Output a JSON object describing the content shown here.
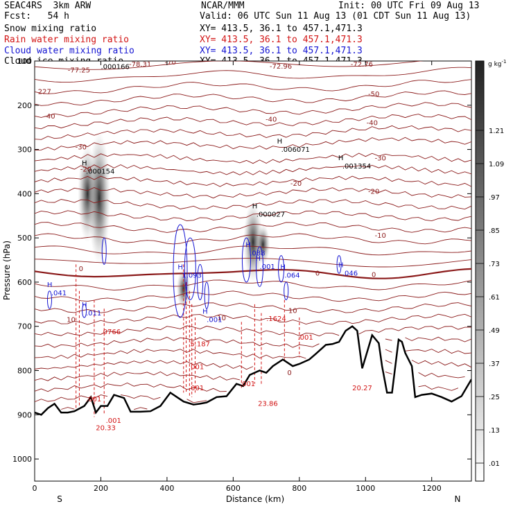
{
  "header": {
    "line1_left": "SEAC4RS  3km ARW",
    "line1_center": "NCAR/MMM",
    "line1_right": "Init: 00 UTC Fri 09 Aug 13",
    "line2_left": "Fcst:   54 h",
    "line2_right": "Valid: 06 UTC Sun 11 Aug 13 (01 CDT Sun 11 Aug 13)",
    "fields": [
      {
        "label": "Snow mixing ratio",
        "xy": "XY= 413.5, 36.1 to 457.1,471.3",
        "color": "#000000"
      },
      {
        "label": "Rain water mixing ratio",
        "xy": "XY= 413.5, 36.1 to 457.1,471.3",
        "color": "#d21414"
      },
      {
        "label": "Cloud water mixing ratio",
        "xy": "XY= 413.5, 36.1 to 457.1,471.3",
        "color": "#1414d2"
      },
      {
        "label": "Cloud ice mixing ratio",
        "xy": "XY= 413.5, 36.1 to 457.1,471.3",
        "color": "#000000"
      }
    ]
  },
  "chart_data": {
    "type": "cross-section",
    "xlabel": "Distance (km)",
    "ylabel": "Pressure (hPa)",
    "xlim": [
      0,
      1320
    ],
    "ylim": [
      1050,
      100
    ],
    "x_ticks": [
      0,
      200,
      400,
      600,
      800,
      1000,
      1200
    ],
    "y_ticks": [
      100,
      200,
      300,
      400,
      500,
      600,
      700,
      800,
      900,
      1000
    ],
    "y_tick_labels": [
      "100",
      "200",
      "300",
      "400",
      "500",
      "600",
      "700",
      "800",
      "900",
      "1000"
    ],
    "x_end_labels": {
      "left": "S",
      "right": "N"
    },
    "colorbar": {
      "unit": "g kg",
      "unit_exp": "-1",
      "labels": [
        ".01",
        ".13",
        ".25",
        ".37",
        ".49",
        ".61",
        ".73",
        ".85",
        ".97",
        "1.09",
        "1.21"
      ]
    },
    "temperature_contours": [
      {
        "label": "-70",
        "x": 410,
        "p": 108
      },
      {
        "label": "-50",
        "x": 1025,
        "p": 180
      },
      {
        "label": "-40",
        "x": 45,
        "p": 230
      },
      {
        "label": "-40",
        "x": 1020,
        "p": 245
      },
      {
        "label": "-40",
        "x": 715,
        "p": 237
      },
      {
        "label": "-30",
        "x": 140,
        "p": 300
      },
      {
        "label": "-30",
        "x": 1045,
        "p": 325
      },
      {
        "label": "-20",
        "x": 1025,
        "p": 400
      },
      {
        "label": "-20",
        "x": 790,
        "p": 382
      },
      {
        "label": "-20",
        "x": 155,
        "p": 350
      },
      {
        "label": "-10",
        "x": 1045,
        "p": 500
      },
      {
        "label": "0",
        "x": 140,
        "p": 575
      },
      {
        "label": "0",
        "x": 855,
        "p": 585
      },
      {
        "label": "0",
        "x": 1025,
        "p": 588
      },
      {
        "label": "10",
        "x": 110,
        "p": 690
      },
      {
        "label": "10",
        "x": 565,
        "p": 686
      },
      {
        "label": "10",
        "x": 780,
        "p": 670
      },
      {
        "label": "0",
        "x": 770,
        "p": 810
      }
    ],
    "top_value_labels": [
      {
        "label": "-77.25",
        "x": 100,
        "p": 113
      },
      {
        "label": "-78.31",
        "x": 285,
        "p": 100
      },
      {
        "label": "-72.96",
        "x": 710,
        "p": 105
      },
      {
        "label": "-72.76",
        "x": 955,
        "p": 100
      },
      {
        "label": "227",
        "x": 10,
        "p": 162
      }
    ],
    "snow_maxima": [
      {
        "value": ".000166",
        "x": 200,
        "p": 118
      },
      {
        "value": ".000154",
        "x": 155,
        "p": 355
      },
      {
        "value": ".006071",
        "x": 745,
        "p": 305
      },
      {
        "value": ".001354",
        "x": 930,
        "p": 343
      },
      {
        "value": ".000027",
        "x": 670,
        "p": 452
      }
    ],
    "cloud_water_maxima": [
      {
        "value": ".041",
        "x": 50,
        "p": 630
      },
      {
        "value": ".011",
        "x": 155,
        "p": 675
      },
      {
        "value": "1.093",
        "x": 445,
        "p": 590
      },
      {
        "value": ".088",
        "x": 650,
        "p": 540
      },
      {
        "value": ".001",
        "x": 680,
        "p": 570
      },
      {
        "value": ".064",
        "x": 755,
        "p": 590
      },
      {
        "value": ".046",
        "x": 930,
        "p": 585
      },
      {
        "value": ".001",
        "x": 520,
        "p": 690
      }
    ],
    "rain_maxima": [
      {
        "value": ".0766",
        "x": 200,
        "p": 718
      },
      {
        "value": ".1624",
        "x": 700,
        "p": 688
      },
      {
        "value": ".001",
        "x": 795,
        "p": 730
      },
      {
        "value": "5.187",
        "x": 470,
        "p": 745
      },
      {
        "value": ".001",
        "x": 465,
        "p": 797
      },
      {
        "value": ".001",
        "x": 465,
        "p": 845
      },
      {
        "value": ".001",
        "x": 620,
        "p": 835
      },
      {
        "value": ".001",
        "x": 155,
        "p": 870
      },
      {
        "value": ".001",
        "x": 215,
        "p": 918
      },
      {
        "value": "20.33",
        "x": 185,
        "p": 935
      },
      {
        "value": "23.86",
        "x": 675,
        "p": 880
      },
      {
        "value": "20.27",
        "x": 960,
        "p": 845
      }
    ],
    "terrain_pressure": [
      [
        0,
        895
      ],
      [
        20,
        900
      ],
      [
        40,
        885
      ],
      [
        60,
        875
      ],
      [
        80,
        895
      ],
      [
        100,
        895
      ],
      [
        120,
        892
      ],
      [
        150,
        880
      ],
      [
        170,
        860
      ],
      [
        185,
        895
      ],
      [
        200,
        880
      ],
      [
        220,
        880
      ],
      [
        240,
        855
      ],
      [
        270,
        862
      ],
      [
        290,
        893
      ],
      [
        320,
        893
      ],
      [
        350,
        892
      ],
      [
        380,
        880
      ],
      [
        410,
        850
      ],
      [
        430,
        860
      ],
      [
        450,
        870
      ],
      [
        480,
        877
      ],
      [
        500,
        875
      ],
      [
        520,
        872
      ],
      [
        550,
        860
      ],
      [
        580,
        858
      ],
      [
        610,
        830
      ],
      [
        630,
        835
      ],
      [
        650,
        810
      ],
      [
        680,
        800
      ],
      [
        700,
        805
      ],
      [
        720,
        790
      ],
      [
        750,
        775
      ],
      [
        780,
        790
      ],
      [
        800,
        785
      ],
      [
        830,
        775
      ],
      [
        850,
        762
      ],
      [
        880,
        742
      ],
      [
        900,
        740
      ],
      [
        920,
        735
      ],
      [
        940,
        710
      ],
      [
        960,
        700
      ],
      [
        975,
        710
      ],
      [
        990,
        795
      ],
      [
        1000,
        770
      ],
      [
        1020,
        720
      ],
      [
        1040,
        738
      ],
      [
        1050,
        790
      ],
      [
        1065,
        850
      ],
      [
        1080,
        850
      ],
      [
        1100,
        730
      ],
      [
        1110,
        735
      ],
      [
        1120,
        760
      ],
      [
        1140,
        790
      ],
      [
        1150,
        860
      ],
      [
        1170,
        855
      ],
      [
        1200,
        852
      ],
      [
        1230,
        860
      ],
      [
        1260,
        870
      ],
      [
        1290,
        858
      ],
      [
        1320,
        820
      ]
    ]
  }
}
